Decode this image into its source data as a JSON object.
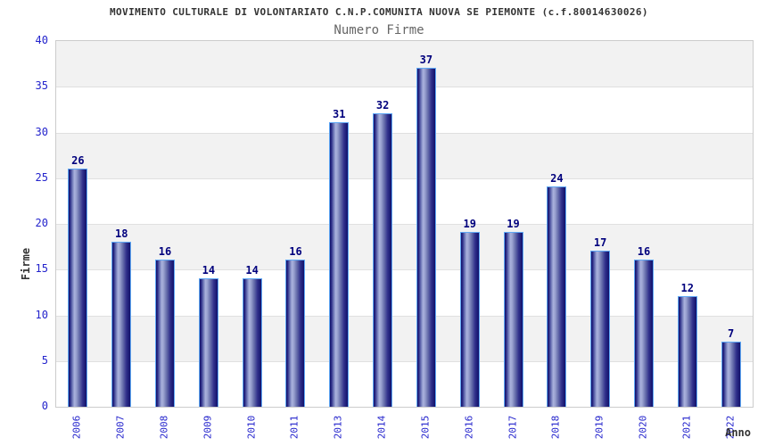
{
  "title": "MOVIMENTO CULTURALE DI VOLONTARIATO C.N.P.COMUNITA NUOVA SE PIEMONTE (c.f.80014630026)",
  "subtitle": "Numero Firme",
  "chart_data": {
    "type": "bar",
    "title": "MOVIMENTO CULTURALE DI VOLONTARIATO C.N.P.COMUNITA NUOVA SE PIEMONTE (c.f.80014630026)",
    "subtitle": "Numero Firme",
    "categories": [
      "2006",
      "2007",
      "2008",
      "2009",
      "2010",
      "2011",
      "2013",
      "2014",
      "2015",
      "2016",
      "2017",
      "2018",
      "2019",
      "2020",
      "2021",
      "2022"
    ],
    "values": [
      26,
      18,
      16,
      14,
      14,
      16,
      31,
      32,
      37,
      19,
      19,
      24,
      17,
      16,
      12,
      7
    ],
    "xlabel": "Anno",
    "ylabel": "Firme",
    "ylim": [
      0,
      40
    ],
    "ytick_step": 5,
    "yticks": [
      0,
      5,
      10,
      15,
      20,
      25,
      30,
      35,
      40
    ],
    "legend": "none",
    "grid": "alternating horizontal bands of 5 units, gray band at top (35-40)",
    "value_labels": "above each bar"
  },
  "colors": {
    "title_text": "#333333",
    "subtitle_text": "#666666",
    "axis_tick_text": "#2323cc",
    "value_label_text": "#00007d",
    "axis_name_text": "#333333",
    "band_gray": "#f2f2f2",
    "band_white": "#ffffff",
    "gridline": "#e0e0e0",
    "plot_border": "#cccccc",
    "bar_outline": "#5fa8f5",
    "bar_dark": "#10106a",
    "bar_light": "#aab2dd"
  }
}
